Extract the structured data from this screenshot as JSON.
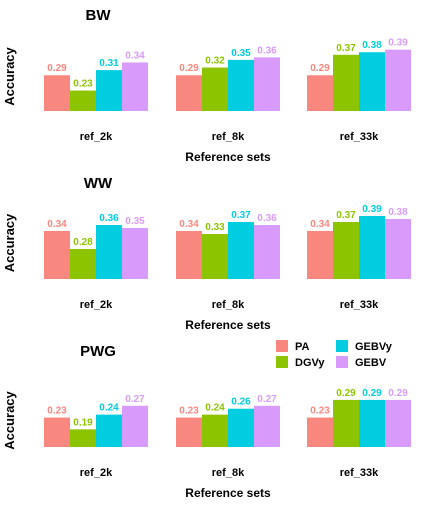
{
  "legend": [
    {
      "name": "PA",
      "color": "#F8877F"
    },
    {
      "name": "DGVy",
      "color": "#8DC400"
    },
    {
      "name": "GEBVy",
      "color": "#00CDE0"
    },
    {
      "name": "GEBV",
      "color": "#D99BFB"
    }
  ],
  "chart_data": [
    {
      "type": "bar",
      "title": "BW",
      "ylabel": "Accuracy",
      "xlabel": "Reference sets",
      "categories": [
        "ref_2k",
        "ref_8k",
        "ref_33k"
      ],
      "series": [
        {
          "name": "PA",
          "values": [
            0.29,
            0.29,
            0.29
          ]
        },
        {
          "name": "DGVy",
          "values": [
            0.23,
            0.32,
            0.37
          ]
        },
        {
          "name": "GEBVy",
          "values": [
            0.31,
            0.35,
            0.38
          ]
        },
        {
          "name": "GEBV",
          "values": [
            0.34,
            0.36,
            0.39
          ]
        }
      ],
      "ylim": [
        0.15,
        0.42
      ]
    },
    {
      "type": "bar",
      "title": "WW",
      "ylabel": "Accuracy",
      "xlabel": "Reference sets",
      "categories": [
        "ref_2k",
        "ref_8k",
        "ref_33k"
      ],
      "series": [
        {
          "name": "PA",
          "values": [
            0.34,
            0.34,
            0.34
          ]
        },
        {
          "name": "DGVy",
          "values": [
            0.28,
            0.33,
            0.37
          ]
        },
        {
          "name": "GEBVy",
          "values": [
            0.36,
            0.37,
            0.39
          ]
        },
        {
          "name": "GEBV",
          "values": [
            0.35,
            0.36,
            0.38
          ]
        }
      ],
      "ylim": [
        0.18,
        0.42
      ]
    },
    {
      "type": "bar",
      "title": "PWG",
      "ylabel": "Accuracy",
      "xlabel": "Reference sets",
      "categories": [
        "ref_2k",
        "ref_8k",
        "ref_33k"
      ],
      "series": [
        {
          "name": "PA",
          "values": [
            0.23,
            0.23,
            0.23
          ]
        },
        {
          "name": "DGVy",
          "values": [
            0.19,
            0.24,
            0.29
          ]
        },
        {
          "name": "GEBVy",
          "values": [
            0.24,
            0.26,
            0.29
          ]
        },
        {
          "name": "GEBV",
          "values": [
            0.27,
            0.27,
            0.29
          ]
        }
      ],
      "ylim": [
        0.13,
        0.31
      ]
    }
  ]
}
